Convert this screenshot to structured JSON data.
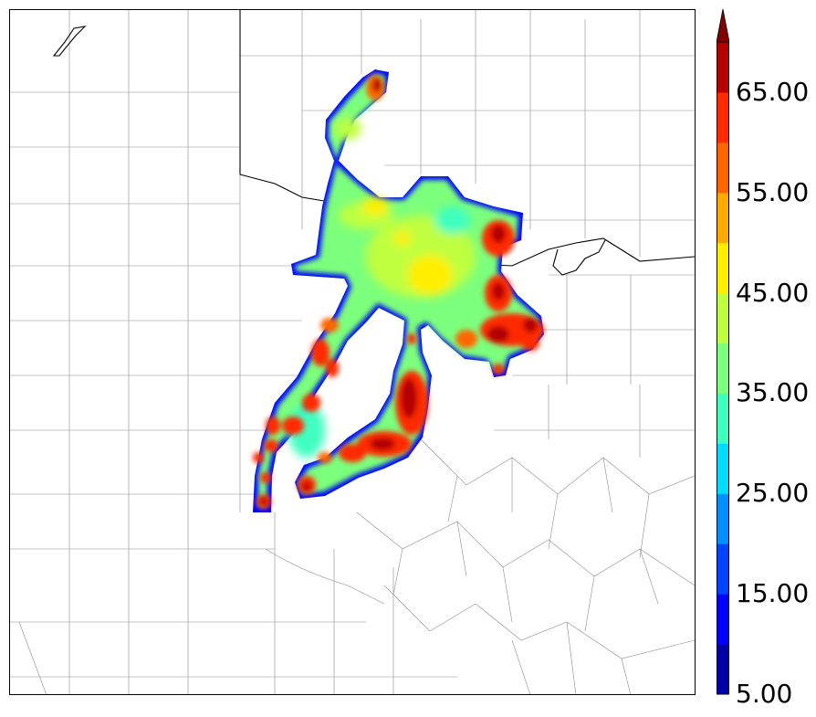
{
  "colorbar": {
    "labels": [
      "5.00",
      "15.00",
      "25.00",
      "35.00",
      "45.00",
      "55.00",
      "65.00"
    ],
    "levels": [
      5,
      10,
      15,
      20,
      25,
      30,
      35,
      40,
      45,
      50,
      55,
      60,
      65,
      70
    ],
    "colors": [
      "#0000a8",
      "#0000ff",
      "#0044ff",
      "#0090ff",
      "#00dcff",
      "#3fffc0",
      "#7cff7c",
      "#c0ff3f",
      "#ffee00",
      "#ffaa00",
      "#ff6600",
      "#ff2a00",
      "#b40000"
    ],
    "extend_color": "#800000",
    "extend": "max"
  },
  "map": {
    "background": "#ffffff",
    "county_line_color": "#777777",
    "state_line_color": "#000000"
  }
}
